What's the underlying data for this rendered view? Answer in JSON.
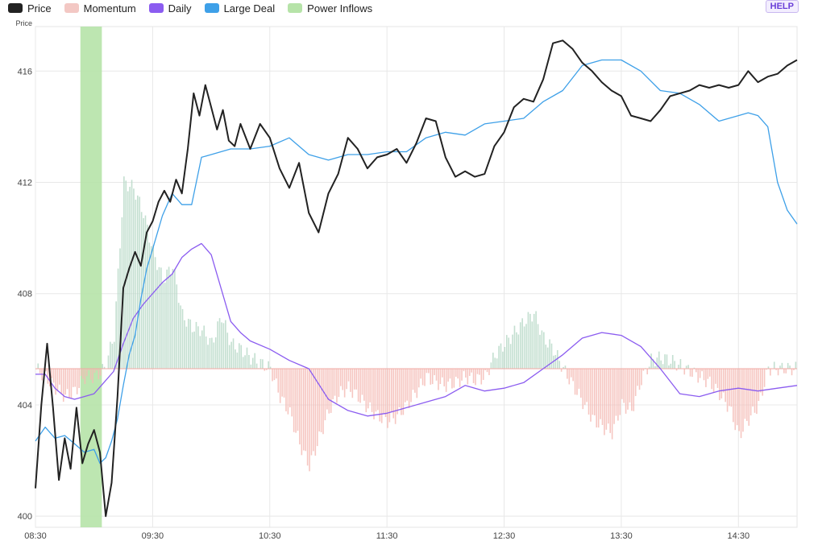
{
  "legend": [
    {
      "label": "Price",
      "color": "#222222",
      "icon": "price-swatch"
    },
    {
      "label": "Momentum",
      "color": "#f3c8c4",
      "icon": "momentum-swatch"
    },
    {
      "label": "Daily",
      "color": "#8b5cf0",
      "icon": "daily-swatch"
    },
    {
      "label": "Large Deal",
      "color": "#3ea0e8",
      "icon": "large-deal-swatch"
    },
    {
      "label": "Power Inflows",
      "color": "#b6e3a8",
      "icon": "power-inflows-swatch"
    }
  ],
  "help_label": "HELP",
  "chart_data": {
    "type": "line",
    "ylabel": "Price",
    "ylim": [
      399.6,
      417.6
    ],
    "yticks": [
      400,
      404,
      408,
      412,
      416
    ],
    "xlim": [
      "08:30",
      "15:00"
    ],
    "xticks": [
      "08:30",
      "09:30",
      "10:30",
      "11:30",
      "12:30",
      "13:30",
      "14:30"
    ],
    "momentum_baseline": 405.3,
    "power_inflows": [
      {
        "start": "08:53",
        "end": "09:04"
      }
    ],
    "series": [
      {
        "name": "Price",
        "color": "#222222",
        "x": [
          "08:30",
          "08:33",
          "08:36",
          "08:39",
          "08:42",
          "08:45",
          "08:48",
          "08:51",
          "08:54",
          "08:57",
          "09:00",
          "09:03",
          "09:06",
          "09:09",
          "09:12",
          "09:15",
          "09:18",
          "09:21",
          "09:24",
          "09:27",
          "09:30",
          "09:33",
          "09:36",
          "09:39",
          "09:42",
          "09:45",
          "09:48",
          "09:51",
          "09:54",
          "09:57",
          "10:00",
          "10:03",
          "10:06",
          "10:09",
          "10:12",
          "10:15",
          "10:20",
          "10:25",
          "10:30",
          "10:35",
          "10:40",
          "10:45",
          "10:50",
          "10:55",
          "11:00",
          "11:05",
          "11:10",
          "11:15",
          "11:20",
          "11:25",
          "11:30",
          "11:35",
          "11:40",
          "11:45",
          "11:50",
          "11:55",
          "12:00",
          "12:05",
          "12:10",
          "12:15",
          "12:20",
          "12:25",
          "12:30",
          "12:35",
          "12:40",
          "12:45",
          "12:50",
          "12:55",
          "13:00",
          "13:05",
          "13:10",
          "13:15",
          "13:20",
          "13:25",
          "13:30",
          "13:35",
          "13:40",
          "13:45",
          "13:50",
          "13:55",
          "14:00",
          "14:05",
          "14:10",
          "14:15",
          "14:20",
          "14:25",
          "14:30",
          "14:35",
          "14:40",
          "14:45",
          "14:50",
          "14:55",
          "15:00"
        ],
        "values": [
          401.0,
          404.0,
          406.2,
          403.9,
          401.3,
          402.8,
          401.7,
          403.9,
          401.9,
          402.6,
          403.1,
          402.3,
          400.0,
          401.2,
          404.3,
          408.2,
          408.9,
          409.5,
          409.0,
          410.2,
          410.6,
          411.3,
          411.7,
          411.3,
          412.1,
          411.6,
          413.2,
          415.2,
          414.4,
          415.5,
          414.7,
          413.9,
          414.6,
          413.5,
          413.3,
          414.1,
          413.2,
          414.1,
          413.6,
          412.5,
          411.8,
          412.7,
          410.9,
          410.2,
          411.6,
          412.3,
          413.6,
          413.2,
          412.5,
          412.9,
          413.0,
          413.2,
          412.7,
          413.4,
          414.3,
          414.2,
          412.9,
          412.2,
          412.4,
          412.2,
          412.3,
          413.3,
          413.8,
          414.7,
          415.0,
          414.9,
          415.7,
          417.0,
          417.1,
          416.8,
          416.3,
          416.0,
          415.6,
          415.3,
          415.1,
          414.4,
          414.3,
          414.2,
          414.6,
          415.1,
          415.2,
          415.3,
          415.5,
          415.4,
          415.5,
          415.4,
          415.5,
          416.0,
          415.6,
          415.8,
          415.9,
          416.2,
          416.4
        ]
      },
      {
        "name": "Large Deal",
        "color": "#3ea0e8",
        "x": [
          "08:30",
          "08:35",
          "08:40",
          "08:45",
          "08:50",
          "08:55",
          "09:00",
          "09:03",
          "09:06",
          "09:09",
          "09:12",
          "09:15",
          "09:18",
          "09:21",
          "09:24",
          "09:27",
          "09:30",
          "09:35",
          "09:40",
          "09:45",
          "09:50",
          "09:55",
          "10:00",
          "10:10",
          "10:20",
          "10:30",
          "10:40",
          "10:50",
          "11:00",
          "11:10",
          "11:20",
          "11:30",
          "11:40",
          "11:50",
          "12:00",
          "12:10",
          "12:20",
          "12:30",
          "12:40",
          "12:50",
          "13:00",
          "13:10",
          "13:20",
          "13:30",
          "13:40",
          "13:50",
          "14:00",
          "14:10",
          "14:20",
          "14:30",
          "14:35",
          "14:40",
          "14:45",
          "14:50",
          "14:55",
          "15:00"
        ],
        "values": [
          402.7,
          403.2,
          402.8,
          402.9,
          402.6,
          402.3,
          402.4,
          401.9,
          402.1,
          402.7,
          403.5,
          404.7,
          405.8,
          406.5,
          407.8,
          408.9,
          409.6,
          410.8,
          411.6,
          411.2,
          411.2,
          412.9,
          413.0,
          413.2,
          413.2,
          413.3,
          413.6,
          413.0,
          412.8,
          413.0,
          413.0,
          413.1,
          413.1,
          413.6,
          413.8,
          413.7,
          414.1,
          414.2,
          414.3,
          414.9,
          415.3,
          416.2,
          416.4,
          416.4,
          416.0,
          415.3,
          415.2,
          414.8,
          414.2,
          414.4,
          414.5,
          414.4,
          414.0,
          412.0,
          411.0,
          410.5
        ]
      },
      {
        "name": "Daily",
        "color": "#8b5cf0",
        "x": [
          "08:30",
          "08:35",
          "08:40",
          "08:45",
          "08:50",
          "08:55",
          "09:00",
          "09:05",
          "09:10",
          "09:15",
          "09:20",
          "09:25",
          "09:30",
          "09:35",
          "09:40",
          "09:45",
          "09:50",
          "09:55",
          "10:00",
          "10:05",
          "10:10",
          "10:15",
          "10:20",
          "10:30",
          "10:40",
          "10:50",
          "11:00",
          "11:10",
          "11:20",
          "11:30",
          "11:40",
          "11:50",
          "12:00",
          "12:10",
          "12:20",
          "12:30",
          "12:40",
          "12:50",
          "13:00",
          "13:10",
          "13:20",
          "13:30",
          "13:40",
          "13:50",
          "14:00",
          "14:10",
          "14:20",
          "14:30",
          "14:40",
          "14:50",
          "15:00"
        ],
        "values": [
          405.1,
          405.1,
          404.6,
          404.3,
          404.2,
          404.3,
          404.4,
          404.8,
          405.2,
          406.2,
          407.1,
          407.6,
          408.0,
          408.4,
          408.7,
          409.3,
          409.6,
          409.8,
          409.4,
          408.2,
          407.0,
          406.6,
          406.3,
          406.0,
          405.6,
          405.3,
          404.2,
          403.8,
          403.6,
          403.7,
          403.9,
          404.1,
          404.3,
          404.7,
          404.5,
          404.6,
          404.8,
          405.3,
          405.8,
          406.4,
          406.6,
          406.5,
          406.1,
          405.3,
          404.4,
          404.3,
          404.5,
          404.6,
          404.5,
          404.6,
          404.7
        ]
      },
      {
        "name": "Momentum",
        "x": [
          "08:30",
          "08:35",
          "08:40",
          "08:45",
          "08:50",
          "08:55",
          "09:00",
          "09:05",
          "09:10",
          "09:15",
          "09:20",
          "09:25",
          "09:30",
          "09:35",
          "09:40",
          "09:45",
          "09:50",
          "09:55",
          "10:00",
          "10:05",
          "10:10",
          "10:15",
          "10:20",
          "10:25",
          "10:30",
          "10:35",
          "10:40",
          "10:45",
          "10:50",
          "10:55",
          "11:00",
          "11:05",
          "11:10",
          "11:15",
          "11:20",
          "11:25",
          "11:30",
          "11:35",
          "11:40",
          "11:45",
          "11:50",
          "11:55",
          "12:00",
          "12:05",
          "12:10",
          "12:15",
          "12:20",
          "12:25",
          "12:30",
          "12:35",
          "12:40",
          "12:45",
          "12:50",
          "12:55",
          "13:00",
          "13:05",
          "13:10",
          "13:15",
          "13:20",
          "13:25",
          "13:30",
          "13:35",
          "13:40",
          "13:45",
          "13:50",
          "13:55",
          "14:00",
          "14:05",
          "14:10",
          "14:15",
          "14:20",
          "14:25",
          "14:30",
          "14:35",
          "14:40",
          "14:45",
          "14:50",
          "14:55",
          "15:00"
        ],
        "values": [
          405.3,
          405.0,
          404.6,
          404.3,
          404.5,
          405.0,
          405.0,
          405.3,
          406.5,
          412.0,
          411.8,
          410.9,
          409.5,
          408.5,
          409.0,
          407.2,
          406.8,
          406.7,
          406.2,
          407.2,
          406.2,
          406.0,
          405.7,
          405.5,
          405.3,
          404.3,
          403.7,
          402.6,
          401.8,
          402.8,
          403.8,
          404.4,
          404.6,
          404.3,
          403.9,
          403.6,
          403.4,
          403.6,
          404.0,
          404.5,
          405.0,
          404.8,
          404.7,
          404.8,
          405.0,
          404.9,
          405.0,
          405.8,
          406.2,
          406.6,
          407.0,
          407.3,
          406.4,
          406.0,
          405.3,
          404.7,
          404.1,
          403.5,
          403.2,
          403.0,
          404.0,
          403.8,
          404.9,
          405.6,
          405.7,
          405.6,
          405.4,
          405.2,
          405.0,
          404.8,
          404.4,
          403.9,
          402.9,
          403.5,
          404.0,
          405.3,
          405.3,
          405.3,
          405.3
        ]
      }
    ]
  }
}
